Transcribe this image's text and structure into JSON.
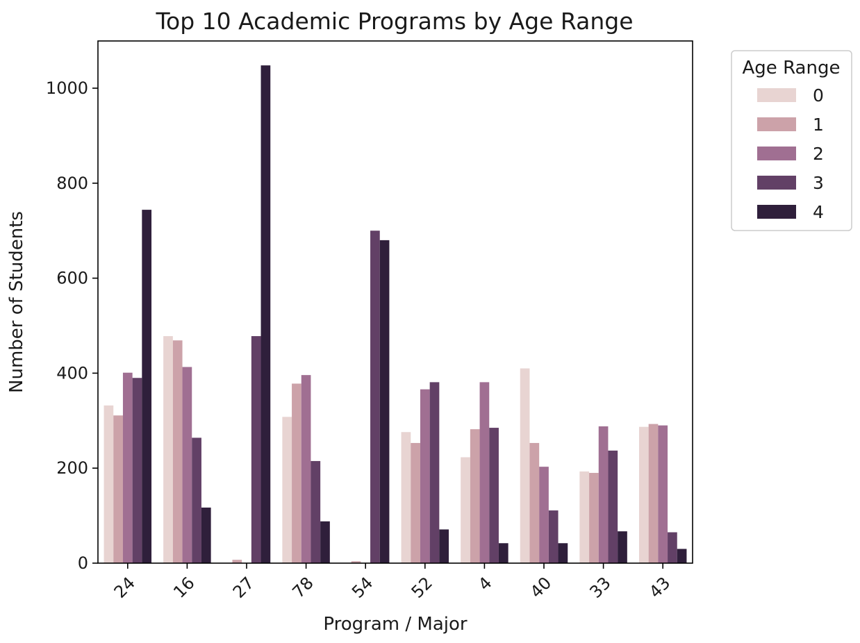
{
  "chart_data": {
    "type": "bar",
    "title": "Top 10 Academic Programs by Age Range",
    "xlabel": "Program / Major",
    "ylabel": "Number of Students",
    "categories": [
      "24",
      "16",
      "27",
      "78",
      "54",
      "52",
      "4",
      "40",
      "33",
      "43"
    ],
    "ylim": [
      0,
      1100
    ],
    "yticks": [
      0,
      200,
      400,
      600,
      800,
      1000
    ],
    "grid": false,
    "legend": {
      "title": "Age Range",
      "placement": "outside-top-right"
    },
    "series": [
      {
        "name": "0",
        "color": "#e8d4d2",
        "values": [
          332,
          478,
          0,
          308,
          0,
          276,
          223,
          410,
          193,
          287
        ]
      },
      {
        "name": "1",
        "color": "#cca2a9",
        "values": [
          311,
          469,
          7,
          378,
          4,
          253,
          282,
          253,
          190,
          293
        ]
      },
      {
        "name": "2",
        "color": "#a06f92",
        "values": [
          401,
          413,
          0,
          396,
          0,
          366,
          381,
          203,
          288,
          290
        ]
      },
      {
        "name": "3",
        "color": "#624066",
        "values": [
          390,
          264,
          478,
          215,
          700,
          381,
          285,
          111,
          237,
          65
        ]
      },
      {
        "name": "4",
        "color": "#2f1f3b",
        "values": [
          744,
          117,
          1048,
          88,
          680,
          71,
          42,
          42,
          67,
          30
        ]
      }
    ]
  }
}
